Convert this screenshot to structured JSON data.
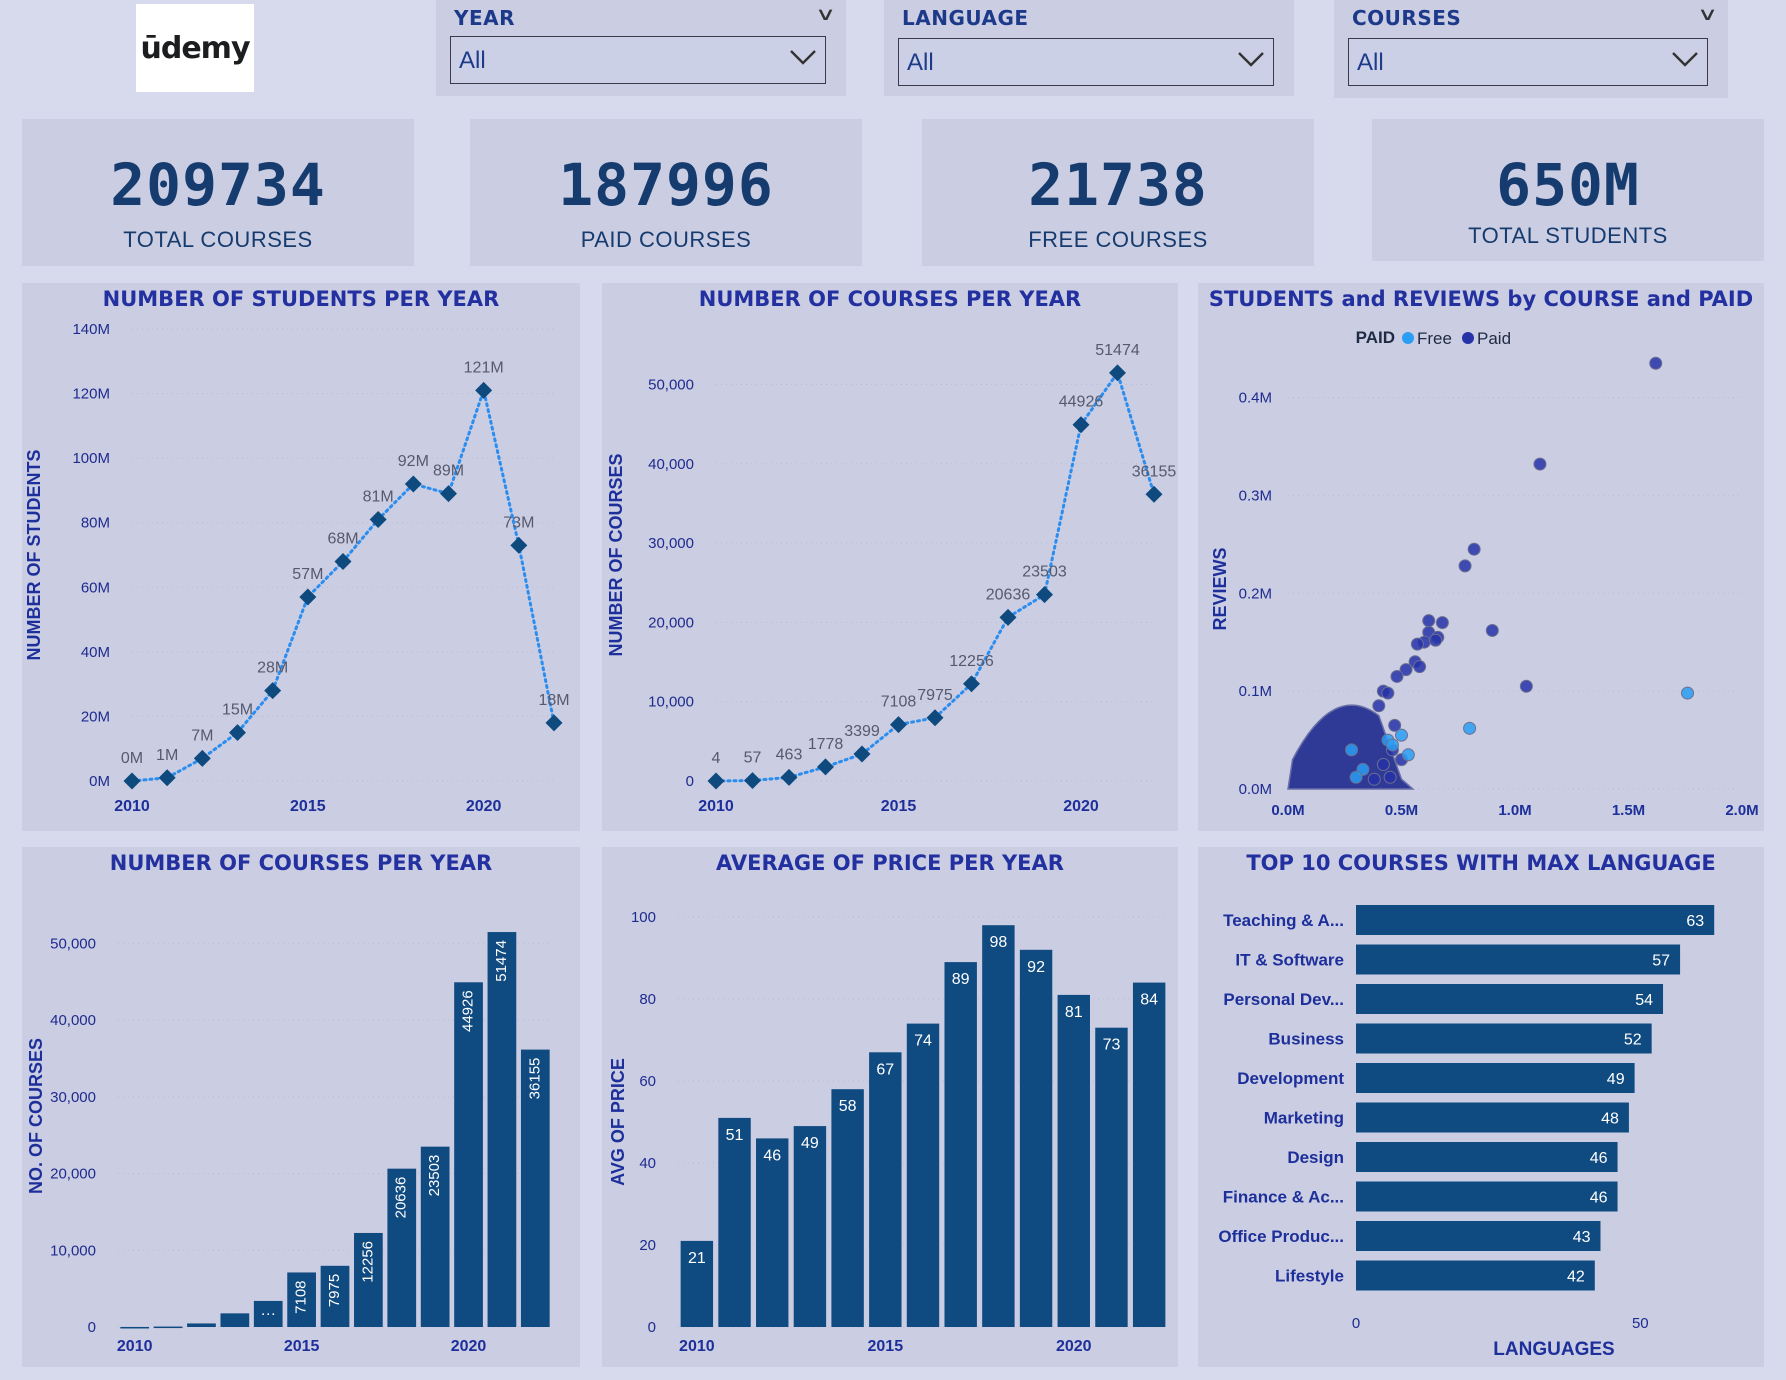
{
  "logo": "ūdemy",
  "slicers": [
    {
      "title": "YEAR",
      "value": "All"
    },
    {
      "title": "LANGUAGE",
      "value": "All"
    },
    {
      "title": "COURSES",
      "value": "All"
    }
  ],
  "kpis": [
    {
      "value": "209734",
      "label": "TOTAL COURSES"
    },
    {
      "value": "187996",
      "label": "PAID COURSES"
    },
    {
      "value": "21738",
      "label": "FREE COURSES"
    },
    {
      "value": "650M",
      "label": "TOTAL STUDENTS"
    }
  ],
  "colors": {
    "bar": "#0f4a80",
    "marker": "#0e4a7e",
    "line": "#2a8df0",
    "free": "#2a9df4",
    "paid": "#2632a8"
  },
  "chart_data": [
    {
      "id": "students",
      "type": "line",
      "title": "NUMBER OF STUDENTS PER YEAR",
      "ylabel": "NUMBER OF STUDENTS",
      "xlabel": "",
      "x": [
        2010,
        2011,
        2012,
        2013,
        2014,
        2015,
        2016,
        2017,
        2018,
        2019,
        2020,
        2021,
        2022
      ],
      "values": [
        0,
        1,
        7,
        15,
        28,
        57,
        68,
        81,
        92,
        89,
        121,
        73,
        18
      ],
      "labels": [
        "0M",
        "1M",
        "7M",
        "15M",
        "28M",
        "57M",
        "68M",
        "81M",
        "92M",
        "89M",
        "121M",
        "73M",
        "18M"
      ],
      "ylim": [
        0,
        140
      ],
      "yticks": [
        0,
        20,
        40,
        60,
        80,
        100,
        120,
        140
      ],
      "ytick_labels": [
        "0M",
        "20M",
        "40M",
        "60M",
        "80M",
        "100M",
        "120M",
        "140M"
      ],
      "xticks": [
        "2010",
        "2015",
        "2020"
      ]
    },
    {
      "id": "courses_line",
      "type": "line",
      "title": "NUMBER OF COURSES PER YEAR",
      "ylabel": "NUMBER OF COURSES",
      "xlabel": "",
      "x": [
        2010,
        2011,
        2012,
        2013,
        2014,
        2015,
        2016,
        2017,
        2018,
        2019,
        2020,
        2021,
        2022
      ],
      "values": [
        4,
        57,
        463,
        1778,
        3399,
        7108,
        7975,
        12256,
        20636,
        23503,
        44926,
        51474,
        36155
      ],
      "labels": [
        "4",
        "57",
        "463",
        "1778",
        "3399",
        "7108",
        "7975",
        "12256",
        "20636",
        "23503",
        "44926",
        "51474",
        "36155"
      ],
      "ylim": [
        0,
        57000
      ],
      "yticks": [
        0,
        10000,
        20000,
        30000,
        40000,
        50000
      ],
      "ytick_labels": [
        "0",
        "10,000",
        "20,000",
        "30,000",
        "40,000",
        "50,000"
      ],
      "xticks": [
        "2010",
        "2015",
        "2020"
      ]
    },
    {
      "id": "scatter",
      "type": "scatter",
      "title": "STUDENTS and REVIEWS by COURSE and PAID",
      "legend_title": "PAID",
      "legend": [
        "Free",
        "Paid"
      ],
      "ylabel": "REVIEWS",
      "xlabel": "",
      "xlim": [
        0,
        2.0
      ],
      "ylim": [
        0,
        0.47
      ],
      "xticks": [
        0,
        0.5,
        1.0,
        1.5,
        2.0
      ],
      "xtick_labels": [
        "0.0M",
        "0.5M",
        "1.0M",
        "1.5M",
        "2.0M"
      ],
      "yticks": [
        0,
        0.1,
        0.2,
        0.3,
        0.4
      ],
      "ytick_labels": [
        "0.0M",
        "0.1M",
        "0.2M",
        "0.3M",
        "0.4M"
      ],
      "series": [
        {
          "name": "Paid",
          "points": [
            [
              1.62,
              0.435
            ],
            [
              1.11,
              0.332
            ],
            [
              0.82,
              0.245
            ],
            [
              0.78,
              0.228
            ],
            [
              0.62,
              0.172
            ],
            [
              0.68,
              0.17
            ],
            [
              0.9,
              0.162
            ],
            [
              0.62,
              0.16
            ],
            [
              0.66,
              0.155
            ],
            [
              0.6,
              0.15
            ],
            [
              0.57,
              0.148
            ],
            [
              0.65,
              0.152
            ],
            [
              0.56,
              0.13
            ],
            [
              0.58,
              0.125
            ],
            [
              0.52,
              0.122
            ],
            [
              0.48,
              0.115
            ],
            [
              0.42,
              0.1
            ],
            [
              0.44,
              0.098
            ],
            [
              1.05,
              0.105
            ],
            [
              0.4,
              0.085
            ],
            [
              0.47,
              0.065
            ],
            [
              0.46,
              0.04
            ],
            [
              0.42,
              0.025
            ],
            [
              0.5,
              0.03
            ],
            [
              0.38,
              0.01
            ],
            [
              0.45,
              0.012
            ]
          ]
        },
        {
          "name": "Free",
          "points": [
            [
              1.76,
              0.098
            ],
            [
              0.8,
              0.062
            ],
            [
              0.5,
              0.055
            ],
            [
              0.44,
              0.05
            ],
            [
              0.46,
              0.045
            ],
            [
              0.53,
              0.035
            ],
            [
              0.33,
              0.02
            ],
            [
              0.28,
              0.04
            ],
            [
              0.3,
              0.012
            ]
          ]
        }
      ]
    },
    {
      "id": "courses_bar",
      "type": "bar",
      "title": "NUMBER OF COURSES PER YEAR",
      "ylabel": "NO. OF COURSES",
      "xlabel": "",
      "x": [
        2010,
        2011,
        2012,
        2013,
        2014,
        2015,
        2016,
        2017,
        2018,
        2019,
        2020,
        2021,
        2022
      ],
      "values": [
        4,
        57,
        463,
        1778,
        3399,
        7108,
        7975,
        12256,
        20636,
        23503,
        44926,
        51474,
        36155
      ],
      "labels": [
        "",
        "",
        "",
        "",
        "…",
        "7108",
        "7975",
        "12256",
        "20636",
        "23503",
        "44926",
        "51474",
        "36155"
      ],
      "ylim": [
        0,
        55000
      ],
      "yticks": [
        0,
        10000,
        20000,
        30000,
        40000,
        50000
      ],
      "ytick_labels": [
        "0",
        "10,000",
        "20,000",
        "30,000",
        "40,000",
        "50,000"
      ],
      "xticks": [
        "2010",
        "2015",
        "2020"
      ]
    },
    {
      "id": "price_bar",
      "type": "bar",
      "title": "AVERAGE OF PRICE PER YEAR",
      "ylabel": "AVG OF PRICE",
      "xlabel": "",
      "x": [
        2010,
        2011,
        2012,
        2013,
        2014,
        2015,
        2016,
        2017,
        2018,
        2019,
        2020,
        2021,
        2022
      ],
      "values": [
        21,
        51,
        46,
        49,
        58,
        67,
        74,
        89,
        98,
        92,
        81,
        73,
        84
      ],
      "labels": [
        "21",
        "51",
        "46",
        "49",
        "58",
        "67",
        "74",
        "89",
        "98",
        "92",
        "81",
        "73",
        "84"
      ],
      "ylim": [
        0,
        100
      ],
      "yticks": [
        0,
        20,
        40,
        60,
        80,
        100
      ],
      "ytick_labels": [
        "0",
        "20",
        "40",
        "60",
        "80",
        "100"
      ],
      "xticks": [
        "2010",
        "2015",
        "2020"
      ]
    },
    {
      "id": "lang_bar",
      "type": "bar",
      "orientation": "horizontal",
      "title": "TOP 10 COURSES WITH MAX LANGUAGE",
      "xlabel": "LANGUAGES",
      "ylabel": "",
      "categories": [
        "Teaching & A...",
        "IT & Software",
        "Personal Dev...",
        "Business",
        "Development",
        "Marketing",
        "Design",
        "Finance & Ac...",
        "Office Produc...",
        "Lifestyle"
      ],
      "values": [
        63,
        57,
        54,
        52,
        49,
        48,
        46,
        46,
        43,
        42
      ],
      "xlim": [
        0,
        70
      ],
      "xticks": [
        0,
        50
      ],
      "xtick_labels": [
        "0",
        "50"
      ]
    }
  ]
}
